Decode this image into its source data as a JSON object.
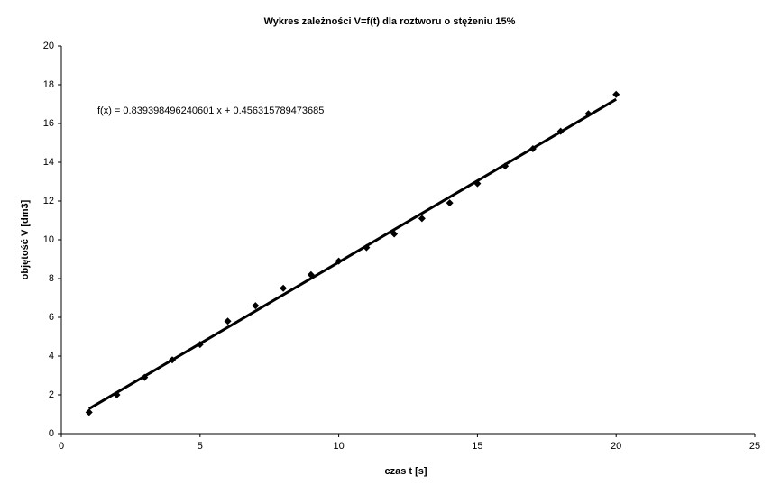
{
  "chart_data": {
    "type": "scatter",
    "title": "Wykres zależności V=f(t) dla roztworu o stężeniu 15%",
    "x_label": "czas t [s]",
    "y_label": "objętość V [dm3]",
    "trendline_label": "f(x) = 0.839398496240601 x + 0.456315789473685",
    "series": [
      {
        "name": "V",
        "color": "#000000",
        "x": [
          1,
          2,
          3,
          4,
          5,
          6,
          7,
          8,
          9,
          10,
          11,
          12,
          13,
          14,
          15,
          16,
          17,
          18,
          19,
          20
        ],
        "values": [
          1.1,
          2.0,
          2.9,
          3.8,
          4.6,
          5.8,
          6.6,
          7.5,
          8.2,
          8.9,
          9.6,
          10.3,
          11.1,
          11.9,
          12.9,
          13.8,
          14.7,
          15.6,
          16.5,
          17.5
        ]
      }
    ],
    "trendline": "linear",
    "xlim": [
      0,
      25
    ],
    "xticks": [
      0,
      5,
      10,
      15,
      20,
      25
    ],
    "ylim": [
      0,
      20
    ],
    "yticks": [
      0,
      2,
      4,
      6,
      8,
      10,
      12,
      14,
      16,
      18,
      20
    ],
    "grid": false
  }
}
